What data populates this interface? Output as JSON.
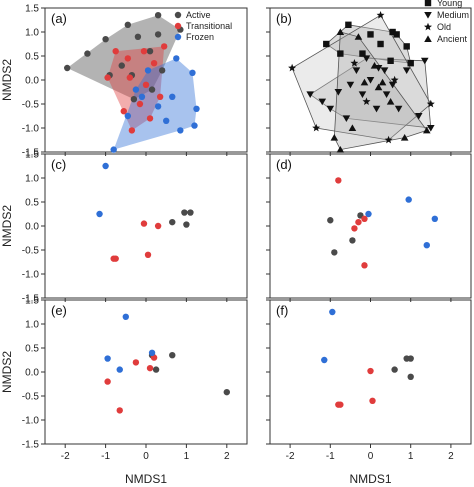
{
  "chart_data": [
    {
      "type": "scatter",
      "panel": "(a)",
      "ylabel": "NMDS2",
      "xlim": [
        -2.5,
        2.5
      ],
      "ylim": [
        -1.5,
        1.5
      ],
      "yticks": [
        "-1.5",
        "-1.0",
        "-0.5",
        "0.0",
        "0.5",
        "1.0",
        "1.5"
      ],
      "hulls": true,
      "legend": {
        "placement": "top-right",
        "entries": [
          {
            "name": "Active",
            "color": "#4a4a4a"
          },
          {
            "name": "Transitional",
            "color": "#e03c3c"
          },
          {
            "name": "Frozen",
            "color": "#2f6fd6"
          }
        ]
      },
      "series": [
        {
          "name": "Active",
          "color": "#4a4a4a",
          "points": [
            [
              -1.95,
              0.25
            ],
            [
              -1.0,
              0.85
            ],
            [
              -0.45,
              1.15
            ],
            [
              0.3,
              1.35
            ],
            [
              0.85,
              1.05
            ],
            [
              -1.45,
              0.55
            ],
            [
              -0.6,
              0.3
            ],
            [
              -0.2,
              0.9
            ],
            [
              0.1,
              0.6
            ],
            [
              -0.35,
              0.1
            ],
            [
              0.15,
              -0.2
            ],
            [
              0.3,
              0.95
            ],
            [
              -0.9,
              0.1
            ],
            [
              0.4,
              0.2
            ],
            [
              -0.3,
              -0.4
            ]
          ]
        },
        {
          "name": "Transitional",
          "color": "#e03c3c",
          "points": [
            [
              -0.95,
              0.05
            ],
            [
              -0.75,
              0.6
            ],
            [
              -0.45,
              0.45
            ],
            [
              -0.05,
              0.6
            ],
            [
              0.45,
              0.7
            ],
            [
              0.2,
              0.35
            ],
            [
              -0.4,
              0.05
            ],
            [
              0.0,
              -0.1
            ],
            [
              -0.15,
              -0.5
            ],
            [
              0.35,
              -0.35
            ],
            [
              -0.55,
              -0.65
            ],
            [
              -0.35,
              -1.05
            ],
            [
              0.1,
              -0.8
            ]
          ]
        },
        {
          "name": "Frozen",
          "color": "#2f6fd6",
          "points": [
            [
              0.75,
              0.45
            ],
            [
              1.15,
              0.15
            ],
            [
              1.25,
              -0.6
            ],
            [
              1.2,
              -0.95
            ],
            [
              0.85,
              -1.05
            ],
            [
              0.5,
              -0.85
            ],
            [
              0.05,
              0.2
            ],
            [
              -0.1,
              -0.35
            ],
            [
              -0.45,
              -0.75
            ],
            [
              -0.8,
              -1.45
            ],
            [
              -0.25,
              -0.2
            ],
            [
              0.3,
              -0.55
            ],
            [
              0.65,
              -0.35
            ]
          ]
        }
      ]
    },
    {
      "type": "scatter",
      "panel": "(b)",
      "xlim": [
        -2.5,
        2.5
      ],
      "ylim": [
        -1.5,
        1.5
      ],
      "hulls": true,
      "legend": {
        "placement": "top-right",
        "entries": [
          {
            "name": "Young",
            "marker": "square"
          },
          {
            "name": "Medium",
            "marker": "triangle-down"
          },
          {
            "name": "Old",
            "marker": "star"
          },
          {
            "name": "Ancient",
            "marker": "triangle-up"
          }
        ]
      },
      "series": [
        {
          "name": "Young",
          "marker": "square",
          "points": [
            [
              -1.1,
              0.75
            ],
            [
              -0.55,
              1.15
            ],
            [
              0.0,
              0.95
            ],
            [
              0.55,
              1.0
            ],
            [
              0.9,
              0.7
            ],
            [
              1.0,
              0.35
            ],
            [
              0.5,
              0.4
            ],
            [
              -0.2,
              0.55
            ],
            [
              0.25,
              0.75
            ],
            [
              -0.75,
              0.55
            ],
            [
              0.65,
              0.95
            ]
          ]
        },
        {
          "name": "Medium",
          "marker": "triangle-down",
          "points": [
            [
              -1.5,
              -0.3
            ],
            [
              -1.2,
              -0.45
            ],
            [
              -1.0,
              -0.6
            ],
            [
              -0.6,
              -0.8
            ],
            [
              -0.2,
              -0.3
            ],
            [
              0.0,
              0.0
            ],
            [
              0.2,
              0.25
            ],
            [
              -0.35,
              0.2
            ],
            [
              0.4,
              -0.3
            ],
            [
              0.7,
              -0.6
            ],
            [
              1.2,
              -0.75
            ],
            [
              1.5,
              -1.0
            ],
            [
              -0.5,
              -0.1
            ],
            [
              0.15,
              -0.6
            ],
            [
              -0.1,
              0.45
            ],
            [
              0.35,
              0.2
            ],
            [
              -0.8,
              -0.25
            ],
            [
              0.9,
              0.2
            ],
            [
              1.35,
              0.4
            ],
            [
              0.55,
              -0.1
            ]
          ]
        },
        {
          "name": "Old",
          "marker": "star",
          "points": [
            [
              -1.95,
              0.25
            ],
            [
              0.25,
              1.35
            ],
            [
              -0.4,
              0.35
            ],
            [
              0.6,
              0.0
            ],
            [
              -0.1,
              -0.45
            ],
            [
              -1.35,
              -1.0
            ],
            [
              0.45,
              -1.25
            ],
            [
              1.5,
              -0.5
            ]
          ]
        },
        {
          "name": "Ancient",
          "marker": "triangle-up",
          "points": [
            [
              -0.75,
              1.0
            ],
            [
              -0.3,
              0.9
            ],
            [
              0.1,
              0.3
            ],
            [
              0.3,
              -0.05
            ],
            [
              -0.15,
              -0.05
            ],
            [
              0.5,
              -0.45
            ],
            [
              -0.45,
              -1.0
            ],
            [
              -0.9,
              -1.2
            ],
            [
              0.85,
              -1.2
            ],
            [
              1.4,
              -1.05
            ],
            [
              -0.75,
              -1.45
            ],
            [
              0.2,
              -0.15
            ]
          ]
        }
      ]
    },
    {
      "type": "scatter",
      "panel": "(c)",
      "ylabel": "NMDS2",
      "xlim": [
        -2.5,
        2.5
      ],
      "ylim": [
        -1.5,
        1.5
      ],
      "yticks": [
        "-1.5",
        "-1.0",
        "-0.5",
        "0.0",
        "0.5",
        "1.0",
        "1.5"
      ],
      "series": [
        {
          "name": "Active",
          "color": "#4a4a4a",
          "points": [
            [
              0.65,
              0.08
            ],
            [
              0.95,
              0.28
            ],
            [
              1.1,
              0.28
            ],
            [
              1.0,
              0.03
            ]
          ]
        },
        {
          "name": "Transitional",
          "color": "#e03c3c",
          "points": [
            [
              -0.05,
              0.05
            ],
            [
              0.3,
              0.0
            ],
            [
              -0.8,
              -0.68
            ],
            [
              -0.75,
              -0.68
            ],
            [
              0.05,
              -0.6
            ]
          ]
        },
        {
          "name": "Frozen",
          "color": "#2f6fd6",
          "points": [
            [
              -1.0,
              1.25
            ],
            [
              -1.15,
              0.25
            ]
          ]
        }
      ]
    },
    {
      "type": "scatter",
      "panel": "(d)",
      "xlim": [
        -2.5,
        2.5
      ],
      "ylim": [
        -1.5,
        1.5
      ],
      "series": [
        {
          "name": "Active",
          "color": "#4a4a4a",
          "points": [
            [
              -1.0,
              0.12
            ],
            [
              -0.9,
              -0.55
            ],
            [
              -0.45,
              -0.3
            ],
            [
              -0.25,
              0.22
            ]
          ]
        },
        {
          "name": "Transitional",
          "color": "#e03c3c",
          "points": [
            [
              -0.8,
              0.95
            ],
            [
              -0.4,
              -0.05
            ],
            [
              -0.3,
              0.08
            ],
            [
              -0.15,
              0.15
            ],
            [
              -0.15,
              -0.82
            ]
          ]
        },
        {
          "name": "Frozen",
          "color": "#2f6fd6",
          "points": [
            [
              -0.05,
              0.25
            ],
            [
              0.95,
              0.55
            ],
            [
              1.4,
              -0.4
            ],
            [
              1.6,
              0.15
            ]
          ]
        }
      ]
    },
    {
      "type": "scatter",
      "panel": "(e)",
      "xlabel": "NMDS1",
      "ylabel": "NMDS2",
      "xlim": [
        -2.5,
        2.5
      ],
      "ylim": [
        -1.5,
        1.5
      ],
      "xticks": [
        "-2",
        "-1",
        "0",
        "1",
        "2"
      ],
      "yticks": [
        "-1.5",
        "-1.0",
        "-0.5",
        "0.0",
        "0.5",
        "1.0",
        "1.5"
      ],
      "series": [
        {
          "name": "Active",
          "color": "#4a4a4a",
          "points": [
            [
              0.15,
              0.35
            ],
            [
              0.65,
              0.35
            ],
            [
              0.25,
              0.05
            ],
            [
              2.0,
              -0.42
            ]
          ]
        },
        {
          "name": "Transitional",
          "color": "#e03c3c",
          "points": [
            [
              -0.25,
              0.2
            ],
            [
              0.1,
              0.08
            ],
            [
              0.2,
              0.3
            ],
            [
              -0.95,
              -0.2
            ],
            [
              -0.65,
              -0.8
            ]
          ]
        },
        {
          "name": "Frozen",
          "color": "#2f6fd6",
          "points": [
            [
              -0.5,
              1.15
            ],
            [
              -0.95,
              0.28
            ],
            [
              0.15,
              0.4
            ],
            [
              -0.65,
              0.05
            ]
          ]
        }
      ]
    },
    {
      "type": "scatter",
      "panel": "(f)",
      "xlabel": "NMDS1",
      "xlim": [
        -2.5,
        2.5
      ],
      "ylim": [
        -1.5,
        1.5
      ],
      "xticks": [
        "-2",
        "-1",
        "0",
        "1",
        "2"
      ],
      "series": [
        {
          "name": "Active",
          "color": "#4a4a4a",
          "points": [
            [
              0.6,
              0.05
            ],
            [
              0.9,
              0.28
            ],
            [
              1.0,
              0.28
            ],
            [
              1.0,
              -0.1
            ]
          ]
        },
        {
          "name": "Transitional",
          "color": "#e03c3c",
          "points": [
            [
              0.0,
              0.02
            ],
            [
              -0.8,
              -0.68
            ],
            [
              -0.75,
              -0.68
            ],
            [
              0.05,
              -0.6
            ]
          ]
        },
        {
          "name": "Frozen",
          "color": "#2f6fd6",
          "points": [
            [
              -0.95,
              1.25
            ],
            [
              -1.15,
              0.25
            ]
          ]
        }
      ]
    }
  ]
}
